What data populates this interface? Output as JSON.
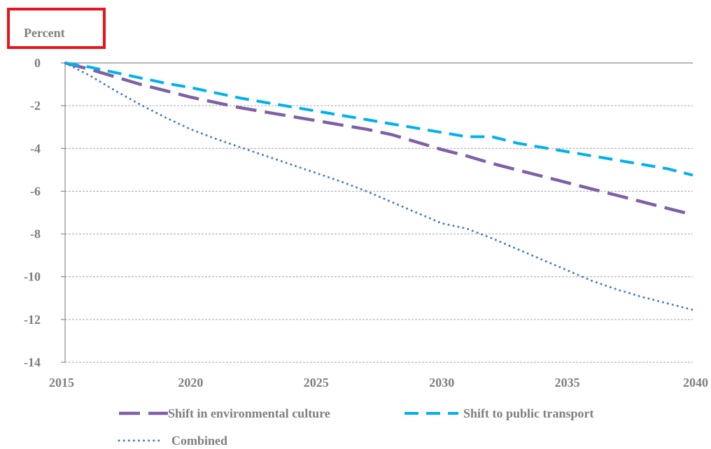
{
  "chart_data": {
    "type": "line",
    "ylabel": "Percent",
    "xlim": [
      2015,
      2040
    ],
    "ylim": [
      -14,
      0
    ],
    "x_ticks": [
      2015,
      2020,
      2025,
      2030,
      2035,
      2040
    ],
    "y_ticks": [
      0,
      -2,
      -4,
      -6,
      -8,
      -10,
      -12,
      -14
    ],
    "grid": "horizontal dashed",
    "legend_position": "bottom",
    "series": [
      {
        "name": "Shift in environmental culture",
        "style": "long-dash",
        "color": "#7f5fa6",
        "x": [
          2015,
          2016,
          2017,
          2018,
          2019,
          2020,
          2021,
          2022,
          2023,
          2024,
          2025,
          2026,
          2027,
          2028,
          2029,
          2030,
          2031,
          2032,
          2033,
          2034,
          2035,
          2036,
          2037,
          2038,
          2039,
          2040
        ],
        "y": [
          0,
          -0.3,
          -0.65,
          -1.0,
          -1.3,
          -1.6,
          -1.85,
          -2.1,
          -2.3,
          -2.5,
          -2.7,
          -2.9,
          -3.1,
          -3.35,
          -3.7,
          -4.05,
          -4.35,
          -4.7,
          -5.0,
          -5.3,
          -5.6,
          -5.9,
          -6.2,
          -6.5,
          -6.8,
          -7.1
        ]
      },
      {
        "name": "Shift to public transport",
        "style": "dash",
        "color": "#00b0f0",
        "x": [
          2015,
          2016,
          2017,
          2018,
          2019,
          2020,
          2021,
          2022,
          2023,
          2024,
          2025,
          2026,
          2027,
          2028,
          2029,
          2030,
          2031,
          2032,
          2033,
          2034,
          2035,
          2036,
          2037,
          2038,
          2039,
          2040
        ],
        "y": [
          0,
          -0.2,
          -0.45,
          -0.7,
          -0.95,
          -1.15,
          -1.4,
          -1.65,
          -1.85,
          -2.05,
          -2.25,
          -2.45,
          -2.65,
          -2.85,
          -3.05,
          -3.25,
          -3.45,
          -3.45,
          -3.75,
          -3.95,
          -4.15,
          -4.35,
          -4.55,
          -4.75,
          -4.95,
          -5.25
        ]
      },
      {
        "name": "Combined",
        "style": "dot",
        "color": "#4a7ebb",
        "x": [
          2015,
          2016,
          2017,
          2018,
          2019,
          2020,
          2021,
          2022,
          2023,
          2024,
          2025,
          2026,
          2027,
          2028,
          2029,
          2030,
          2031,
          2032,
          2033,
          2034,
          2035,
          2036,
          2037,
          2038,
          2039,
          2040
        ],
        "y": [
          0,
          -0.6,
          -1.3,
          -1.95,
          -2.55,
          -3.1,
          -3.55,
          -3.95,
          -4.35,
          -4.75,
          -5.15,
          -5.55,
          -6.0,
          -6.5,
          -7.0,
          -7.5,
          -7.75,
          -8.2,
          -8.7,
          -9.2,
          -9.7,
          -10.2,
          -10.6,
          -10.95,
          -11.25,
          -11.55
        ]
      }
    ]
  }
}
